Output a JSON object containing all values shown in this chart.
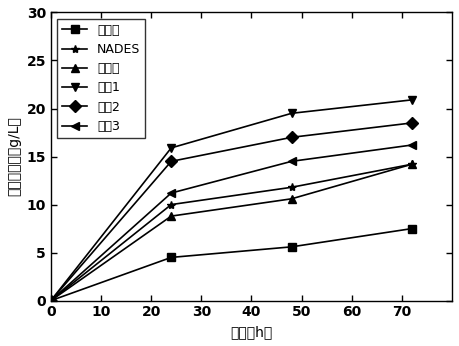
{
  "x": [
    0,
    24,
    48,
    72
  ],
  "series": [
    {
      "label": "未处理",
      "values": [
        0,
        4.5,
        5.6,
        7.5
      ],
      "marker": "s",
      "color": "#000000",
      "linestyle": "-"
    },
    {
      "label": "NADES",
      "values": [
        0,
        10.0,
        11.8,
        14.2
      ],
      "marker": "*",
      "color": "#000000",
      "linestyle": "-"
    },
    {
      "label": "碳尿素",
      "values": [
        0,
        8.8,
        10.6,
        14.2
      ],
      "marker": "^",
      "color": "#000000",
      "linestyle": "-"
    },
    {
      "label": "实折1",
      "values": [
        0,
        15.9,
        19.5,
        20.9
      ],
      "marker": "v",
      "color": "#000000",
      "linestyle": "-"
    },
    {
      "label": "实折2",
      "values": [
        0,
        14.5,
        17.0,
        18.5
      ],
      "marker": "D",
      "color": "#000000",
      "linestyle": "-"
    },
    {
      "label": "实折3",
      "values": [
        0,
        11.2,
        14.5,
        16.2
      ],
      "marker": "<",
      "color": "#000000",
      "linestyle": "-"
    }
  ],
  "xlabel": "时间（h）",
  "ylabel": "还原糖浓度（g/L）",
  "xlim": [
    0,
    80
  ],
  "ylim": [
    0,
    30
  ],
  "xticks": [
    0,
    10,
    20,
    30,
    40,
    50,
    60,
    70
  ],
  "yticks": [
    0,
    5,
    10,
    15,
    20,
    25,
    30
  ],
  "legend_loc": "upper left",
  "font_size": 10,
  "marker_size": 6
}
